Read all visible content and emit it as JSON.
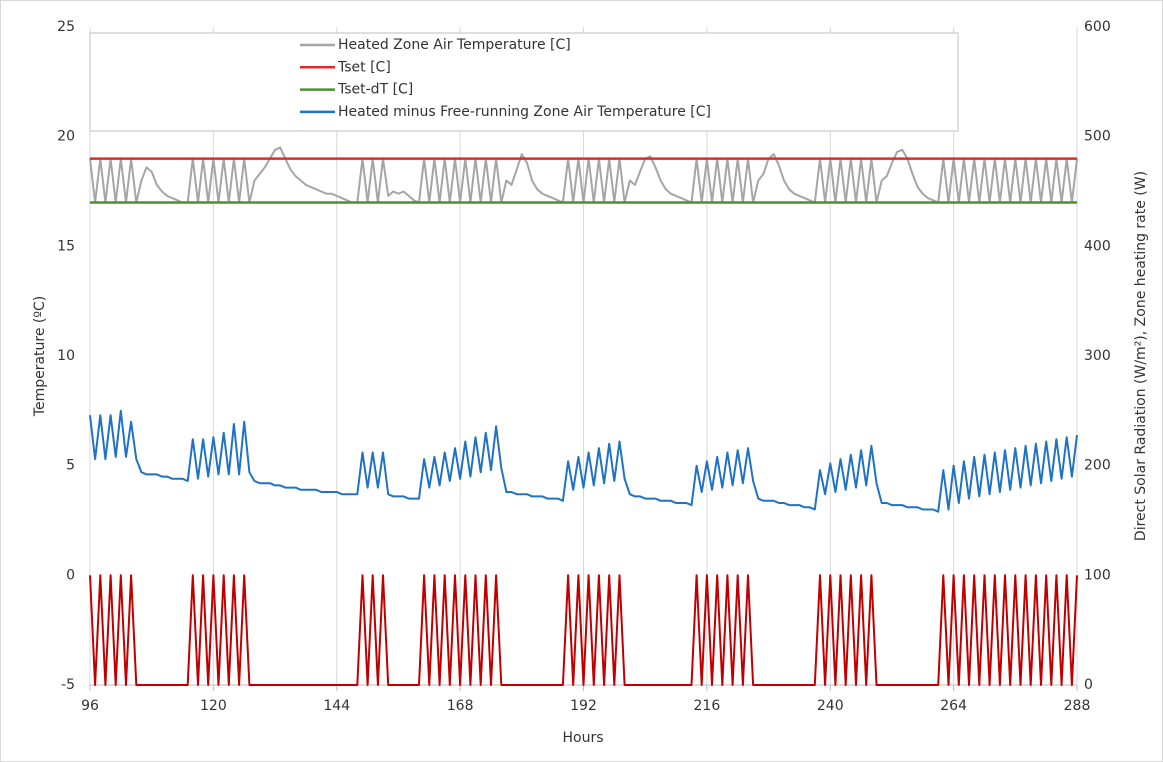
{
  "chart_data": {
    "type": "line",
    "xlabel": "Hours",
    "ylabel": "Temperature (ºC)",
    "y2label": "Direct Solar Radiation (W/m²), Zone heating rate (W)",
    "xlim": [
      96,
      288
    ],
    "xticks": [
      96,
      120,
      144,
      168,
      192,
      216,
      240,
      264,
      288
    ],
    "ylim": [
      -5,
      25
    ],
    "yticks": [
      -5,
      0,
      5,
      10,
      15,
      20,
      25
    ],
    "y2lim": [
      0,
      600
    ],
    "y2ticks": [
      0,
      100,
      200,
      300,
      400,
      500,
      600
    ],
    "grid": "x",
    "x": [
      96,
      97,
      98,
      99,
      100,
      101,
      102,
      103,
      104,
      105,
      106,
      107,
      108,
      109,
      110,
      111,
      112,
      113,
      114,
      115,
      116,
      117,
      118,
      119,
      120,
      121,
      122,
      123,
      124,
      125,
      126,
      127,
      128,
      129,
      130,
      131,
      132,
      133,
      134,
      135,
      136,
      137,
      138,
      139,
      140,
      141,
      142,
      143,
      144,
      145,
      146,
      147,
      148,
      149,
      150,
      151,
      152,
      153,
      154,
      155,
      156,
      157,
      158,
      159,
      160,
      161,
      162,
      163,
      164,
      165,
      166,
      167,
      168,
      169,
      170,
      171,
      172,
      173,
      174,
      175,
      176,
      177,
      178,
      179,
      180,
      181,
      182,
      183,
      184,
      185,
      186,
      187,
      188,
      189,
      190,
      191,
      192,
      193,
      194,
      195,
      196,
      197,
      198,
      199,
      200,
      201,
      202,
      203,
      204,
      205,
      206,
      207,
      208,
      209,
      210,
      211,
      212,
      213,
      214,
      215,
      216,
      217,
      218,
      219,
      220,
      221,
      222,
      223,
      224,
      225,
      226,
      227,
      228,
      229,
      230,
      231,
      232,
      233,
      234,
      235,
      236,
      237,
      238,
      239,
      240,
      241,
      242,
      243,
      244,
      245,
      246,
      247,
      248,
      249,
      250,
      251,
      252,
      253,
      254,
      255,
      256,
      257,
      258,
      259,
      260,
      261,
      262,
      263,
      264,
      265,
      266,
      267,
      268,
      269,
      270,
      271,
      272,
      273,
      274,
      275,
      276,
      277,
      278,
      279,
      280,
      281,
      282,
      283,
      284,
      285,
      286,
      287,
      288
    ],
    "series": [
      {
        "name": "Heated Zone Air Temperature [C]",
        "color": "#a5a5a5",
        "values": [
          19,
          17,
          19,
          17,
          19,
          17,
          19,
          17,
          19,
          17,
          18.0,
          18.6,
          18.4,
          17.8,
          17.5,
          17.3,
          17.2,
          17.1,
          17.0,
          17.0,
          19,
          17,
          19,
          17,
          19,
          17,
          19,
          17,
          19,
          17,
          19,
          17,
          18.0,
          18.3,
          18.6,
          19.0,
          19.4,
          19.5,
          19.0,
          18.5,
          18.2,
          18.0,
          17.8,
          17.7,
          17.6,
          17.5,
          17.4,
          17.4,
          17.3,
          17.2,
          17.1,
          17.0,
          17.0,
          19,
          17,
          19,
          17,
          19,
          17.3,
          17.5,
          17.4,
          17.5,
          17.3,
          17.1,
          17.0,
          19,
          17,
          19,
          17,
          19,
          17,
          19,
          17,
          19,
          17,
          19,
          17,
          19,
          17,
          19,
          17,
          18.0,
          17.8,
          18.5,
          19.2,
          18.8,
          18.0,
          17.6,
          17.4,
          17.3,
          17.2,
          17.1,
          17.0,
          19,
          17,
          19,
          17,
          19,
          17,
          19,
          17,
          19,
          17,
          19,
          17,
          18.0,
          17.8,
          18.4,
          19.0,
          19.1,
          18.6,
          18.0,
          17.6,
          17.4,
          17.3,
          17.2,
          17.1,
          17.0,
          19,
          17,
          19,
          17,
          19,
          17,
          19,
          17,
          19,
          17,
          19,
          17,
          18.0,
          18.3,
          19.0,
          19.2,
          18.7,
          18.0,
          17.6,
          17.4,
          17.3,
          17.2,
          17.1,
          17.0,
          19,
          17,
          19,
          17,
          19,
          17,
          19,
          17,
          19,
          17,
          19,
          17,
          18.0,
          18.2,
          18.8,
          19.3,
          19.4,
          19.0,
          18.3,
          17.7,
          17.4,
          17.2,
          17.1,
          17.0,
          19,
          17,
          19,
          17,
          19,
          17,
          19,
          17,
          19,
          17,
          19,
          17,
          19,
          17,
          19,
          17,
          19,
          17,
          19,
          17,
          19,
          17,
          19,
          17,
          19,
          17,
          19
        ]
      },
      {
        "name": "Tset [C]",
        "color": "#e8262a",
        "x": [
          96,
          288
        ],
        "values": [
          19,
          19
        ]
      },
      {
        "name": "Tset-dT [C]",
        "color": "#4e8f2e",
        "x": [
          96,
          288
        ],
        "values": [
          17,
          17
        ]
      },
      {
        "name": "Heated minus Free-running Zone Air Temperature [C]",
        "color": "#1f72c4",
        "values": [
          7.3,
          5.3,
          7.3,
          5.3,
          7.3,
          5.4,
          7.5,
          5.4,
          7.0,
          5.3,
          4.7,
          4.6,
          4.6,
          4.6,
          4.5,
          4.5,
          4.4,
          4.4,
          4.4,
          4.3,
          6.2,
          4.4,
          6.2,
          4.5,
          6.3,
          4.6,
          6.5,
          4.6,
          6.9,
          4.6,
          7.0,
          4.7,
          4.3,
          4.2,
          4.2,
          4.2,
          4.1,
          4.1,
          4.0,
          4.0,
          4.0,
          3.9,
          3.9,
          3.9,
          3.9,
          3.8,
          3.8,
          3.8,
          3.8,
          3.7,
          3.7,
          3.7,
          3.7,
          5.6,
          4.0,
          5.6,
          4.0,
          5.6,
          3.7,
          3.6,
          3.6,
          3.6,
          3.5,
          3.5,
          3.5,
          5.3,
          4.0,
          5.4,
          4.1,
          5.6,
          4.3,
          5.8,
          4.4,
          6.1,
          4.5,
          6.3,
          4.7,
          6.5,
          4.8,
          6.8,
          4.9,
          3.8,
          3.8,
          3.7,
          3.7,
          3.7,
          3.6,
          3.6,
          3.6,
          3.5,
          3.5,
          3.5,
          3.4,
          5.2,
          3.9,
          5.4,
          4.0,
          5.6,
          4.1,
          5.8,
          4.2,
          6.0,
          4.3,
          6.1,
          4.4,
          3.7,
          3.6,
          3.6,
          3.5,
          3.5,
          3.5,
          3.4,
          3.4,
          3.4,
          3.3,
          3.3,
          3.3,
          3.2,
          5.0,
          3.8,
          5.2,
          3.9,
          5.4,
          4.0,
          5.6,
          4.1,
          5.7,
          4.2,
          5.8,
          4.3,
          3.5,
          3.4,
          3.4,
          3.4,
          3.3,
          3.3,
          3.2,
          3.2,
          3.2,
          3.1,
          3.1,
          3.0,
          4.8,
          3.7,
          5.1,
          3.8,
          5.3,
          3.9,
          5.5,
          4.0,
          5.7,
          4.1,
          5.9,
          4.2,
          3.3,
          3.3,
          3.2,
          3.2,
          3.2,
          3.1,
          3.1,
          3.1,
          3.0,
          3.0,
          3.0,
          2.9,
          4.8,
          3.0,
          5.0,
          3.3,
          5.2,
          3.5,
          5.4,
          3.6,
          5.5,
          3.7,
          5.6,
          3.8,
          5.7,
          3.9,
          5.8,
          4.0,
          5.9,
          4.1,
          6.0,
          4.2,
          6.1,
          4.3,
          6.2,
          4.4,
          6.3,
          4.5,
          6.4
        ]
      },
      {
        "color": "#c00000",
        "axis": "y2",
        "values": [
          100,
          0,
          100,
          0,
          100,
          0,
          100,
          0,
          100,
          0,
          0,
          0,
          0,
          0,
          0,
          0,
          0,
          0,
          0,
          0,
          100,
          0,
          100,
          0,
          100,
          0,
          100,
          0,
          100,
          0,
          100,
          0,
          0,
          0,
          0,
          0,
          0,
          0,
          0,
          0,
          0,
          0,
          0,
          0,
          0,
          0,
          0,
          0,
          0,
          0,
          0,
          0,
          0,
          100,
          0,
          100,
          0,
          100,
          0,
          0,
          0,
          0,
          0,
          0,
          0,
          100,
          0,
          100,
          0,
          100,
          0,
          100,
          0,
          100,
          0,
          100,
          0,
          100,
          0,
          100,
          0,
          0,
          0,
          0,
          0,
          0,
          0,
          0,
          0,
          0,
          0,
          0,
          0,
          100,
          0,
          100,
          0,
          100,
          0,
          100,
          0,
          100,
          0,
          100,
          0,
          0,
          0,
          0,
          0,
          0,
          0,
          0,
          0,
          0,
          0,
          0,
          0,
          0,
          100,
          0,
          100,
          0,
          100,
          0,
          100,
          0,
          100,
          0,
          100,
          0,
          0,
          0,
          0,
          0,
          0,
          0,
          0,
          0,
          0,
          0,
          0,
          0,
          100,
          0,
          100,
          0,
          100,
          0,
          100,
          0,
          100,
          0,
          100,
          0,
          0,
          0,
          0,
          0,
          0,
          0,
          0,
          0,
          0,
          0,
          0,
          0,
          100,
          0,
          100,
          0,
          100,
          0,
          100,
          0,
          100,
          0,
          100,
          0,
          100,
          0,
          100,
          0,
          100,
          0,
          100,
          0,
          100,
          0,
          100,
          0,
          100,
          0,
          100
        ]
      }
    ]
  }
}
